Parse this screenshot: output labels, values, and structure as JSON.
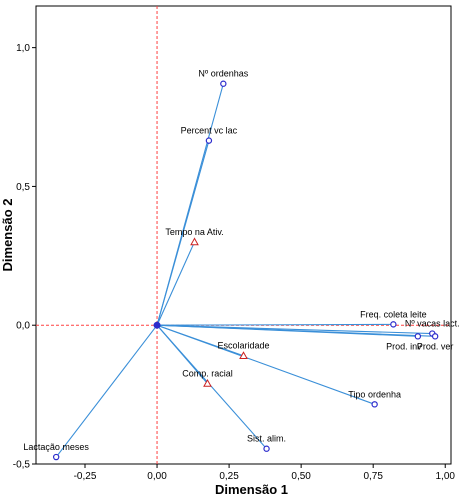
{
  "chart_data": {
    "type": "scatter",
    "title": "",
    "xlabel": "Dimensão 1",
    "ylabel": "Dimensão 2",
    "xlim": [
      -0.42,
      1.02
    ],
    "ylim": [
      -0.5,
      1.15
    ],
    "x_ticks": [
      -0.25,
      0.0,
      0.25,
      0.5,
      0.75,
      1.0
    ],
    "x_tick_labels": [
      "-0,25",
      "0,00",
      "0,25",
      "0,50",
      "0,75",
      "1,00"
    ],
    "y_ticks": [
      -0.5,
      0.0,
      0.5,
      1.0
    ],
    "y_tick_labels": [
      "-0,5",
      "0,0",
      "0,5",
      "1,0"
    ],
    "grid": false,
    "reference_lines": {
      "x": 0,
      "y": 0,
      "color": "#ff4040",
      "style": "dashed"
    },
    "origin": {
      "x": 0,
      "y": 0
    },
    "colors": {
      "vector_line": "#3a8fd8",
      "circle_marker": "#2c2ccc",
      "triangle_marker": "#cc2020",
      "plot_border": "#000000"
    },
    "points": [
      {
        "label": "Nº ordenhas",
        "x": 0.23,
        "y": 0.87,
        "marker": "circle",
        "label_pos": "above"
      },
      {
        "label": "Percent vc lac",
        "x": 0.18,
        "y": 0.665,
        "marker": "circle",
        "label_pos": "above"
      },
      {
        "label": "Tempo na Ativ.",
        "x": 0.13,
        "y": 0.3,
        "marker": "triangle",
        "label_pos": "above"
      },
      {
        "label": "Freq. coleta leite",
        "x": 0.82,
        "y": 0.003,
        "marker": "circle",
        "label_pos": "above"
      },
      {
        "label": "Nº vacas lact.",
        "x": 0.955,
        "y": -0.03,
        "marker": "circle",
        "label_pos": "above"
      },
      {
        "label": "Prod. inv",
        "x": 0.905,
        "y": -0.04,
        "marker": "circle",
        "label_pos": "below-left"
      },
      {
        "label": "Prod. ver",
        "x": 0.965,
        "y": -0.04,
        "marker": "circle",
        "label_pos": "below"
      },
      {
        "label": "Escolaridade",
        "x": 0.3,
        "y": -0.11,
        "marker": "triangle",
        "label_pos": "above"
      },
      {
        "label": "Comp. racial",
        "x": 0.175,
        "y": -0.21,
        "marker": "triangle",
        "label_pos": "above"
      },
      {
        "label": "Tipo ordenha",
        "x": 0.755,
        "y": -0.285,
        "marker": "circle",
        "label_pos": "above"
      },
      {
        "label": "Sist. alim.",
        "x": 0.38,
        "y": -0.445,
        "marker": "circle",
        "label_pos": "above"
      },
      {
        "label": "Lactação meses",
        "x": -0.35,
        "y": -0.475,
        "marker": "circle",
        "label_pos": "above"
      }
    ]
  }
}
